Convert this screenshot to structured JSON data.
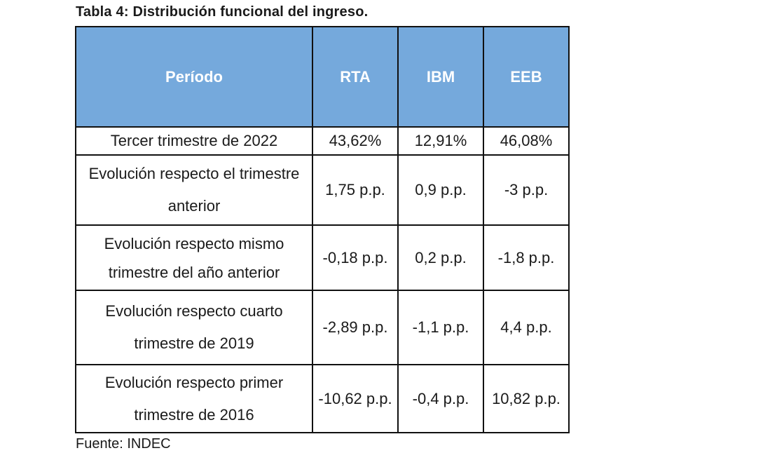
{
  "title": "Tabla 4: Distribución funcional del ingreso.",
  "headers": [
    "Período",
    "RTA",
    "IBM",
    "EEB"
  ],
  "rows": [
    {
      "period": "Tercer trimestre de 2022",
      "rta": "43,62%",
      "ibm": "12,91%",
      "eeb": "46,08%"
    },
    {
      "period": "Evolución respecto el trimestre anterior",
      "rta": "1,75 p.p.",
      "ibm": "0,9 p.p.",
      "eeb": "-3 p.p."
    },
    {
      "period": "Evolución respecto mismo trimestre del año anterior",
      "rta": "-0,18 p.p.",
      "ibm": "0,2 p.p.",
      "eeb": "-1,8 p.p."
    },
    {
      "period": "Evolución respecto cuarto trimestre de 2019",
      "rta": "-2,89 p.p.",
      "ibm": "-1,1 p.p.",
      "eeb": "4,4 p.p."
    },
    {
      "period": "Evolución respecto primer trimestre de 2016",
      "rta": "-10,62 p.p.",
      "ibm": "-0,4 p.p.",
      "eeb": "10,82 p.p."
    }
  ],
  "source": "Fuente: INDEC",
  "colors": {
    "header_bg": "#75a9dc",
    "header_text": "#ffffff",
    "border": "#111111"
  }
}
